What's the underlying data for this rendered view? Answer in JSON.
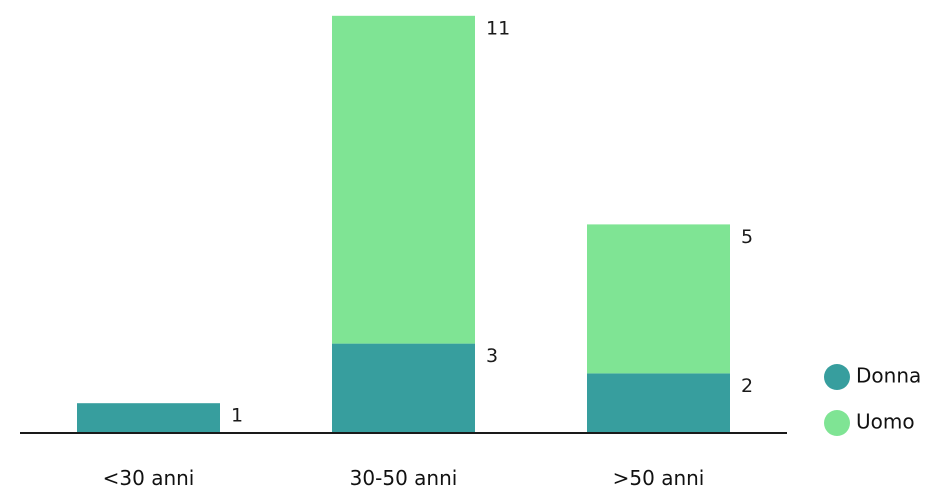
{
  "chart_data": {
    "type": "bar",
    "stacked": true,
    "categories": [
      "<30 anni",
      "30-50 anni",
      ">50 anni"
    ],
    "series": [
      {
        "name": "Donna",
        "values": [
          1,
          3,
          2
        ],
        "color": "#379e9e"
      },
      {
        "name": "Uomo",
        "values": [
          0,
          11,
          5
        ],
        "color": "#7fe494"
      }
    ],
    "data_labels": [
      [
        "1",
        "3",
        "2"
      ],
      [
        "",
        "11",
        "5"
      ]
    ],
    "title": "",
    "xlabel": "",
    "ylabel": "",
    "ylim": [
      0,
      14
    ],
    "grid": false,
    "legend_position": "bottom-right"
  }
}
